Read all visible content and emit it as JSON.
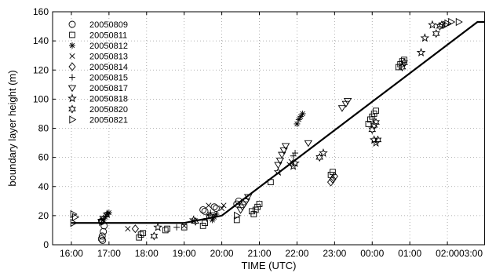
{
  "chart_data": {
    "type": "scatter",
    "title": "",
    "xlabel": "TIME (UTC)",
    "ylabel": "boundary layer height (m)",
    "xlim": [
      16.0,
      27.5
    ],
    "ylim": [
      0,
      160
    ],
    "grid": true,
    "legend_position": "top-left",
    "x_ticks": [
      {
        "value": 16.5,
        "label": "16:00"
      },
      {
        "value": 17.5,
        "label": "17:00"
      },
      {
        "value": 18.5,
        "label": "18:00"
      },
      {
        "value": 19.5,
        "label": "19:00"
      },
      {
        "value": 20.5,
        "label": "20:00"
      },
      {
        "value": 21.5,
        "label": "21:00"
      },
      {
        "value": 22.5,
        "label": "22:00"
      },
      {
        "value": 23.5,
        "label": "23:00"
      },
      {
        "value": 24.5,
        "label": "00:00"
      },
      {
        "value": 25.5,
        "label": "01:00"
      },
      {
        "value": 26.5,
        "label": "02:00"
      },
      {
        "value": 27.5,
        "label": "03:00"
      }
    ],
    "y_ticks": [
      0,
      20,
      40,
      60,
      80,
      100,
      120,
      140,
      160
    ],
    "series": [
      {
        "name": "20050809",
        "marker": "circle",
        "points": [
          [
            17.3,
            4
          ],
          [
            17.32,
            6
          ],
          [
            17.35,
            9
          ],
          [
            17.37,
            13
          ],
          [
            17.3,
            16
          ],
          [
            17.33,
            3
          ],
          [
            20.0,
            24
          ],
          [
            20.05,
            23
          ],
          [
            20.3,
            26
          ],
          [
            20.35,
            25
          ],
          [
            20.9,
            28
          ],
          [
            20.95,
            30
          ]
        ]
      },
      {
        "name": "20050811",
        "marker": "square",
        "points": [
          [
            18.3,
            5
          ],
          [
            18.35,
            7
          ],
          [
            18.4,
            8
          ],
          [
            19.0,
            10
          ],
          [
            19.05,
            11
          ],
          [
            19.5,
            12
          ],
          [
            20.0,
            13
          ],
          [
            20.05,
            15
          ],
          [
            20.9,
            17
          ],
          [
            21.3,
            23
          ],
          [
            21.35,
            21
          ],
          [
            21.4,
            24
          ],
          [
            21.45,
            26
          ],
          [
            21.5,
            28
          ],
          [
            21.8,
            43
          ],
          [
            23.4,
            48
          ],
          [
            23.45,
            50
          ],
          [
            24.4,
            83
          ],
          [
            24.45,
            86
          ],
          [
            24.5,
            88
          ],
          [
            24.55,
            90
          ],
          [
            24.6,
            92
          ],
          [
            25.2,
            122
          ],
          [
            25.25,
            124
          ],
          [
            25.3,
            126
          ],
          [
            25.35,
            127
          ]
        ]
      },
      {
        "name": "20050812",
        "marker": "asterisk",
        "points": [
          [
            17.35,
            17
          ],
          [
            17.4,
            19
          ],
          [
            17.45,
            21
          ],
          [
            17.5,
            22
          ],
          [
            20.25,
            17
          ],
          [
            20.3,
            19
          ],
          [
            20.35,
            21
          ],
          [
            22.5,
            83
          ],
          [
            22.55,
            86
          ],
          [
            22.6,
            88
          ],
          [
            22.65,
            90
          ]
        ]
      },
      {
        "name": "20050813",
        "marker": "x",
        "points": [
          [
            18.0,
            11
          ],
          [
            19.5,
            13
          ],
          [
            20.15,
            27
          ],
          [
            20.5,
            25
          ],
          [
            20.55,
            27
          ],
          [
            22.3,
            55
          ],
          [
            22.35,
            57
          ]
        ]
      },
      {
        "name": "20050814",
        "marker": "diamond",
        "points": [
          [
            18.2,
            11
          ],
          [
            23.4,
            43
          ],
          [
            23.45,
            45
          ],
          [
            23.5,
            47
          ]
        ]
      },
      {
        "name": "20050815",
        "marker": "plus",
        "points": [
          [
            17.25,
            15
          ],
          [
            17.3,
            17
          ],
          [
            19.3,
            12
          ],
          [
            20.1,
            18
          ],
          [
            20.15,
            20
          ],
          [
            20.2,
            22
          ],
          [
            22.4,
            61
          ],
          [
            22.45,
            63
          ]
        ]
      },
      {
        "name": "20050817",
        "marker": "triangle-down",
        "points": [
          [
            17.3,
            16
          ],
          [
            17.35,
            18
          ],
          [
            21.0,
            24
          ],
          [
            21.05,
            26
          ],
          [
            21.1,
            28
          ],
          [
            21.15,
            30
          ],
          [
            21.2,
            33
          ],
          [
            22.0,
            55
          ],
          [
            22.05,
            58
          ],
          [
            22.1,
            62
          ],
          [
            22.15,
            65
          ],
          [
            22.2,
            68
          ],
          [
            22.8,
            70
          ],
          [
            23.7,
            94
          ],
          [
            23.8,
            97
          ],
          [
            23.85,
            99
          ]
        ]
      },
      {
        "name": "20050818",
        "marker": "star",
        "points": [
          [
            17.45,
            21
          ],
          [
            18.8,
            12
          ],
          [
            19.75,
            17
          ],
          [
            20.2,
            20
          ],
          [
            22.0,
            50
          ],
          [
            22.4,
            54
          ],
          [
            22.45,
            56
          ],
          [
            23.2,
            63
          ],
          [
            24.55,
            72
          ],
          [
            24.6,
            70
          ],
          [
            25.8,
            132
          ],
          [
            25.9,
            142
          ],
          [
            26.1,
            151
          ]
        ]
      },
      {
        "name": "20050820",
        "marker": "hexagram",
        "points": [
          [
            18.7,
            6
          ],
          [
            19.8,
            16
          ],
          [
            23.1,
            60
          ],
          [
            24.5,
            79
          ],
          [
            24.55,
            82
          ],
          [
            24.6,
            84
          ],
          [
            24.65,
            72
          ],
          [
            25.3,
            122
          ],
          [
            25.35,
            125
          ],
          [
            26.2,
            145
          ],
          [
            26.3,
            150
          ],
          [
            26.35,
            151
          ]
        ]
      },
      {
        "name": "20050821",
        "marker": "triangle-right",
        "points": [
          [
            16.55,
            21
          ],
          [
            16.6,
            19
          ],
          [
            16.55,
            15
          ],
          [
            20.9,
            20
          ],
          [
            26.45,
            151
          ],
          [
            26.5,
            152
          ],
          [
            26.6,
            153
          ],
          [
            26.8,
            153
          ]
        ]
      }
    ],
    "model_line": {
      "x": [
        16.5,
        19.5,
        20.5,
        27.3,
        27.5
      ],
      "y": [
        15,
        15,
        20,
        153,
        153
      ]
    }
  }
}
